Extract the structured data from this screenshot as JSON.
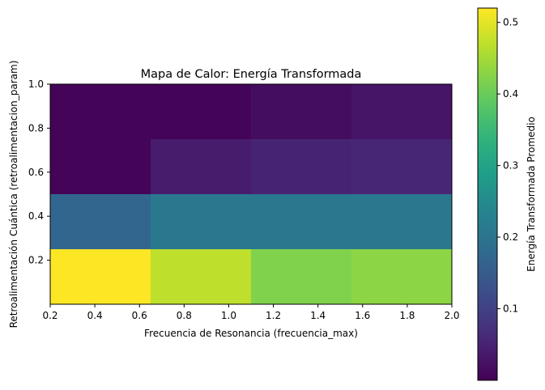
{
  "chart_data": {
    "type": "heatmap",
    "title": "Mapa de Calor: Energía Transformada",
    "xlabel": "Frecuencia de Resonancia (frecuencia_max)",
    "ylabel": "Retroalimentación Cuántica (retroalimentacion_param)",
    "colorbar_label": "Energía Transformada Promedio",
    "colormap": "viridis",
    "xlim": [
      0.2,
      2.0
    ],
    "ylim": [
      0.0,
      1.0
    ],
    "x_edges": [
      0.2,
      0.65,
      1.1,
      1.55,
      2.0
    ],
    "y_edges": [
      0.0,
      0.25,
      0.5,
      0.75,
      1.0
    ],
    "xticks": [
      "0.2",
      "0.4",
      "0.6",
      "0.8",
      "1.0",
      "1.2",
      "1.4",
      "1.6",
      "1.8",
      "2.0"
    ],
    "yticks": [
      "0.2",
      "0.4",
      "0.6",
      "0.8",
      "1.0"
    ],
    "values": [
      [
        0.52,
        0.47,
        0.42,
        0.43
      ],
      [
        0.17,
        0.21,
        0.21,
        0.21
      ],
      [
        0.005,
        0.04,
        0.05,
        0.055
      ],
      [
        0.005,
        0.005,
        0.018,
        0.03
      ]
    ],
    "vmin": 0.0,
    "vmax": 0.52,
    "colorbar_ticks": [
      "0.1",
      "0.2",
      "0.3",
      "0.4",
      "0.5"
    ]
  }
}
